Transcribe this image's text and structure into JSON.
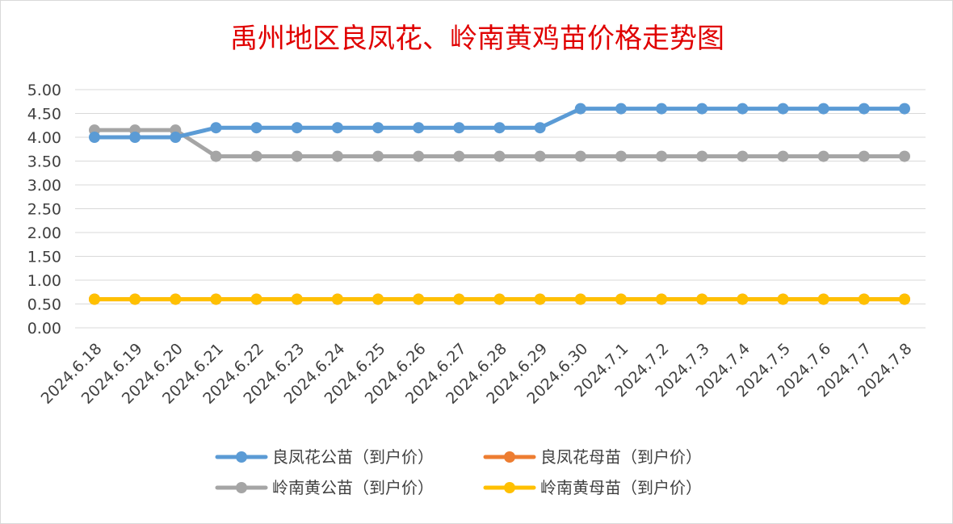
{
  "chart_data": {
    "type": "line",
    "title": "禹州地区良凤花、岭南黄鸡苗价格走势图",
    "xlabel": "",
    "ylabel": "",
    "ylim": [
      0,
      5
    ],
    "y_ticks": [
      "0.00",
      "0.50",
      "1.00",
      "1.50",
      "2.00",
      "2.50",
      "3.00",
      "3.50",
      "4.00",
      "4.50",
      "5.00"
    ],
    "grid": true,
    "legend_position": "bottom",
    "x": [
      "2024.6.18",
      "2024.6.19",
      "2024.6.20",
      "2024.6.21",
      "2024.6.22",
      "2024.6.23",
      "2024.6.24",
      "2024.6.25",
      "2024.6.26",
      "2024.6.27",
      "2024.6.28",
      "2024.6.29",
      "2024.6.30",
      "2024.7.1",
      "2024.7.2",
      "2024.7.3",
      "2024.7.4",
      "2024.7.5",
      "2024.7.6",
      "2024.7.7",
      "2024.7.8"
    ],
    "series": [
      {
        "name": "良凤花公苗（到户价）",
        "color": "#5b9bd5",
        "values": [
          4.0,
          4.0,
          4.0,
          4.2,
          4.2,
          4.2,
          4.2,
          4.2,
          4.2,
          4.2,
          4.2,
          4.2,
          4.6,
          4.6,
          4.6,
          4.6,
          4.6,
          4.6,
          4.6,
          4.6,
          4.6
        ]
      },
      {
        "name": "良凤花母苗（到户价）",
        "color": "#ed7d31",
        "values": [
          0.6,
          0.6,
          0.6,
          0.6,
          0.6,
          0.6,
          0.6,
          0.6,
          0.6,
          0.6,
          0.6,
          0.6,
          0.6,
          0.6,
          0.6,
          0.6,
          0.6,
          0.6,
          0.6,
          0.6,
          0.6
        ]
      },
      {
        "name": "岭南黄公苗（到户价）",
        "color": "#a5a5a5",
        "values": [
          4.15,
          4.15,
          4.15,
          3.6,
          3.6,
          3.6,
          3.6,
          3.6,
          3.6,
          3.6,
          3.6,
          3.6,
          3.6,
          3.6,
          3.6,
          3.6,
          3.6,
          3.6,
          3.6,
          3.6,
          3.6
        ]
      },
      {
        "name": "岭南黄母苗（到户价）",
        "color": "#ffc000",
        "values": [
          0.6,
          0.6,
          0.6,
          0.6,
          0.6,
          0.6,
          0.6,
          0.6,
          0.6,
          0.6,
          0.6,
          0.6,
          0.6,
          0.6,
          0.6,
          0.6,
          0.6,
          0.6,
          0.6,
          0.6,
          0.6
        ]
      }
    ]
  }
}
